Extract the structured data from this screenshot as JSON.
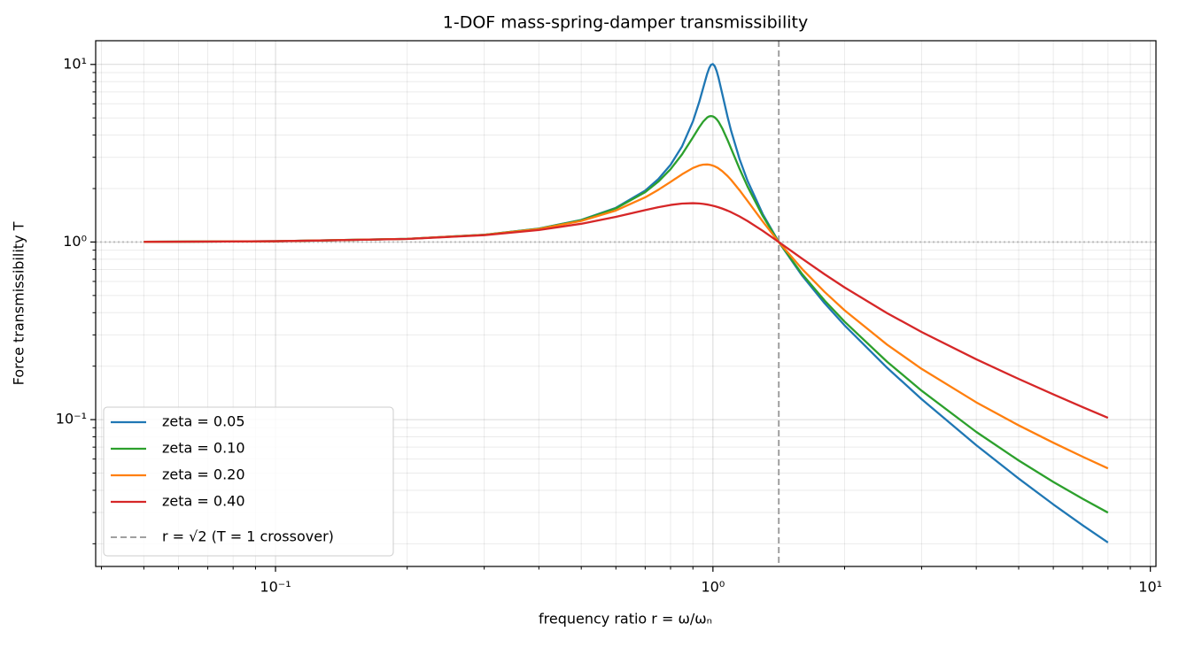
{
  "chart_data": {
    "type": "line",
    "title": "1-DOF mass-spring-damper transmissibility",
    "xlabel": "frequency ratio r = ω/ωₙ",
    "ylabel": "Force transmissibility T",
    "xscale": "log",
    "yscale": "log",
    "grid": true,
    "legend": "lower left",
    "xlim": [
      0.0388,
      10.3
    ],
    "ylim": [
      0.0149,
      13.6
    ],
    "xticks": [
      {
        "value": 0.1,
        "label": "10⁻¹"
      },
      {
        "value": 1,
        "label": "10⁰"
      },
      {
        "value": 10,
        "label": "10¹"
      }
    ],
    "yticks": [
      {
        "value": 0.1,
        "label": "10⁻¹"
      },
      {
        "value": 1,
        "label": "10⁰"
      },
      {
        "value": 10,
        "label": "10¹"
      }
    ],
    "xminorticks": [
      0.04,
      0.05,
      0.06,
      0.07,
      0.08,
      0.09,
      0.2,
      0.3,
      0.4,
      0.5,
      0.6,
      0.7,
      0.8,
      0.9,
      2,
      3,
      4,
      5,
      6,
      7,
      8,
      9
    ],
    "yminorticks": [
      0.02,
      0.03,
      0.04,
      0.05,
      0.06,
      0.07,
      0.08,
      0.09,
      0.2,
      0.3,
      0.4,
      0.5,
      0.6,
      0.7,
      0.8,
      0.9,
      2,
      3,
      4,
      5,
      6,
      7,
      8,
      9
    ],
    "x": [
      0.05,
      0.1,
      0.2,
      0.3,
      0.4,
      0.5,
      0.6,
      0.7,
      0.75,
      0.8,
      0.85,
      0.9,
      0.93,
      0.95,
      0.97,
      0.98,
      0.99,
      1.0,
      1.01,
      1.02,
      1.03,
      1.05,
      1.08,
      1.1,
      1.15,
      1.2,
      1.3,
      1.4142,
      1.6,
      1.8,
      2,
      2.5,
      3,
      4,
      5,
      6,
      7,
      8
    ],
    "series": [
      {
        "name": "zeta = 0.05",
        "color": "#1f77b4",
        "values": [
          1.003,
          1.01,
          1.0417,
          1.0988,
          1.1901,
          1.332,
          1.5585,
          1.9473,
          2.2592,
          2.7203,
          3.458,
          4.7758,
          6.1233,
          7.3791,
          8.8452,
          9.5063,
          9.9514,
          10.05,
          9.76,
          9.1624,
          8.4014,
          6.8525,
          5.0702,
          4.2437,
          2.9399,
          2.2084,
          1.4362,
          1.0,
          0.6458,
          0.4521,
          0.3392,
          0.1961,
          0.1304,
          0.07178,
          0.04657,
          0.03331,
          0.02543,
          0.02033
        ]
      },
      {
        "name": "zeta = 0.10",
        "color": "#2ca02c",
        "values": [
          1.003,
          1.01,
          1.0416,
          1.0985,
          1.1889,
          1.3282,
          1.5468,
          1.9093,
          2.1863,
          2.5706,
          3.1169,
          3.8822,
          4.4246,
          4.7664,
          5.0228,
          5.0962,
          5.1227,
          5.099,
          5.0257,
          4.9076,
          4.7529,
          4.3727,
          3.7521,
          3.3666,
          2.5905,
          2.0519,
          1.4013,
          1.0,
          0.6593,
          0.4685,
          0.3559,
          0.212,
          0.1454,
          0.08525,
          0.05888,
          0.0446,
          0.03583,
          0.02994
        ]
      },
      {
        "name": "zeta = 0.20",
        "color": "#ff7f0e",
        "values": [
          1.003,
          1.01,
          1.0414,
          1.0973,
          1.1843,
          1.3138,
          1.5046,
          1.7849,
          1.9681,
          2.1798,
          2.4067,
          2.611,
          2.6959,
          2.7268,
          2.733,
          2.7262,
          2.7126,
          2.6926,
          2.6663,
          2.6343,
          2.5969,
          2.5088,
          2.3531,
          2.2409,
          1.9593,
          1.7035,
          1.3045,
          1.0,
          0.7041,
          0.5237,
          0.4125,
          0.2646,
          0.1931,
          0.1251,
          0.09285,
          0.07411,
          0.06184,
          0.05315
        ]
      },
      {
        "name": "zeta = 0.40",
        "color": "#d62728",
        "values": [
          1.002,
          1.01,
          1.0406,
          1.0928,
          1.1681,
          1.2671,
          1.3865,
          1.5132,
          1.5705,
          1.6169,
          1.6465,
          1.6548,
          1.6483,
          1.6392,
          1.6264,
          1.6187,
          1.6102,
          1.6008,
          1.5906,
          1.5798,
          1.5682,
          1.5433,
          1.502,
          1.4724,
          1.3938,
          1.3127,
          1.156,
          1.0,
          0.805,
          0.6584,
          0.5549,
          0.398,
          0.3113,
          0.2186,
          0.1695,
          0.1388,
          0.1177,
          0.1023
        ]
      }
    ],
    "vline": {
      "x": 1.4142,
      "label": "r = √2 (T = 1 crossover)",
      "color": "#a0a0a0"
    },
    "hline": {
      "y": 1,
      "color": "#b8b8b8"
    }
  }
}
